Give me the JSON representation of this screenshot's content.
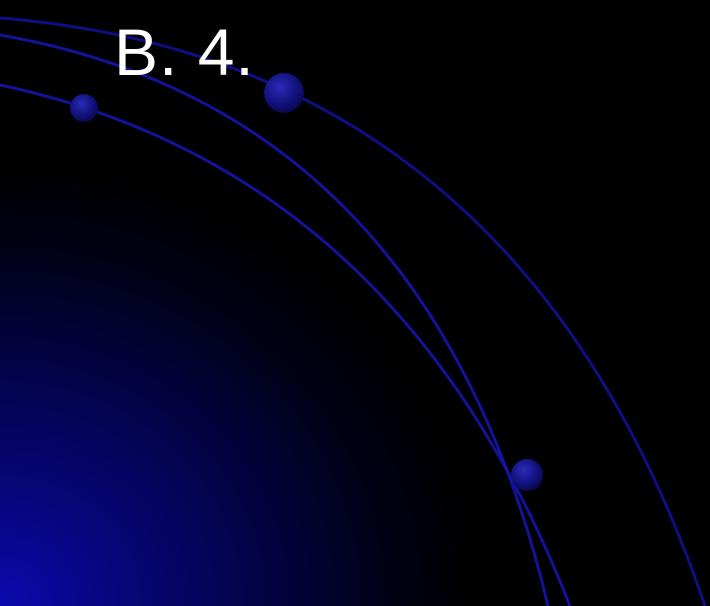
{
  "slide": {
    "title": "B. 4."
  },
  "colors": {
    "background": "#000000",
    "glow": "#0a0ab0",
    "arc": "#1414a8",
    "dot": "#10107a",
    "title_text": "#ffffff"
  },
  "decorations": {
    "arc_count": 3,
    "dot_count": 3
  }
}
